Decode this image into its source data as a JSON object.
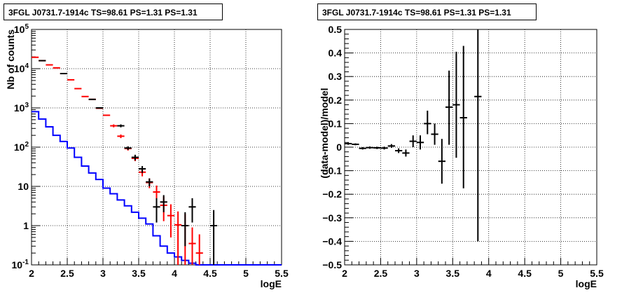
{
  "chart_data": [
    {
      "type": "line",
      "title": "3FGL J0731.7-1914c TS=98.61 PS=1.31 PS=1.31",
      "xlabel": "logE",
      "ylabel": "Nb of counts",
      "xlim": [
        2,
        5.5
      ],
      "ylim": [
        0.1,
        100000
      ],
      "yscale": "log",
      "grid": true,
      "x_ticks": [
        "2",
        "2.5",
        "3",
        "3.5",
        "4",
        "4.5",
        "5",
        "5.5"
      ],
      "y_ticks": [
        "10^-1",
        "1",
        "10",
        "10^2",
        "10^3",
        "10^4",
        "10^5"
      ],
      "series": [
        {
          "color": "#0000ff",
          "style": "step",
          "x": [
            2.05,
            2.15,
            2.25,
            2.35,
            2.45,
            2.55,
            2.65,
            2.75,
            2.85,
            2.95,
            3.05,
            3.15,
            3.25,
            3.35,
            3.45,
            3.55,
            3.65,
            3.75,
            3.85,
            3.95,
            4.05,
            4.15,
            4.25,
            4.35,
            4.45,
            4.55,
            4.65,
            4.75,
            4.85,
            4.95,
            5.05,
            5.15,
            5.25,
            5.35,
            5.45
          ],
          "y": [
            800,
            520,
            330,
            200,
            140,
            95,
            55,
            33,
            22,
            15,
            9,
            6.5,
            4.5,
            3.2,
            2.2,
            1.55,
            1.1,
            0.55,
            0.3,
            0.2,
            0.16,
            0.13,
            0.11,
            0.1,
            0.1,
            0.1,
            0.1,
            0.1,
            0.1,
            0.1,
            0.1,
            0.1,
            0.1,
            0.1,
            0.1
          ]
        },
        {
          "color": "#ff0000",
          "style": "errorbar",
          "x": [
            2.05,
            2.15,
            2.25,
            2.35,
            2.45,
            2.55,
            2.65,
            2.75,
            2.85,
            2.95,
            3.05,
            3.15,
            3.25,
            3.35,
            3.45,
            3.55,
            3.65,
            3.75,
            3.85,
            3.95,
            4.05,
            4.15,
            4.25,
            4.35
          ],
          "y": [
            19500,
            16000,
            12500,
            10500,
            7500,
            5200,
            3100,
            1950,
            1650,
            980,
            650,
            350,
            190,
            92,
            52,
            23,
            12.5,
            7.2,
            3.3,
            1.8,
            1.05,
            1.0,
            0.35,
            0.2
          ],
          "y_low": [
            19500,
            16000,
            12500,
            10500,
            7500,
            5200,
            3100,
            1950,
            1650,
            980,
            650,
            320,
            170,
            82,
            44,
            18,
            9,
            3.5,
            1.3,
            0.5,
            0.1,
            0.1,
            0.1,
            0.1
          ],
          "y_high": [
            19500,
            16000,
            12500,
            10500,
            7500,
            5200,
            3100,
            1950,
            1650,
            980,
            650,
            380,
            210,
            102,
            60,
            28,
            16,
            10.5,
            5.5,
            3.5,
            2.3,
            2.0,
            0.9,
            0.6
          ]
        },
        {
          "color": "#000000",
          "style": "errorbar",
          "x": [
            2.15,
            2.45,
            2.85,
            2.95,
            3.25,
            3.35,
            3.45,
            3.55,
            3.65,
            3.75,
            3.85,
            4.15,
            4.25,
            4.55
          ],
          "y": [
            16000,
            7500,
            1650,
            1000,
            350,
            95,
            55,
            28,
            13,
            3.0,
            4.0,
            1.0,
            3.0,
            1.0
          ],
          "y_low": [
            16000,
            7500,
            1650,
            1000,
            320,
            85,
            46,
            22,
            10,
            1.2,
            2.2,
            0.3,
            1.2,
            0.1
          ],
          "y_high": [
            16000,
            7500,
            1650,
            1000,
            380,
            105,
            64,
            33,
            16,
            5.0,
            6.0,
            2.2,
            5.0,
            2.5
          ]
        }
      ]
    },
    {
      "type": "scatter",
      "title": "3FGL J0731.7-1914c TS=98.61 PS=1.31 PS=1.31",
      "xlabel": "logE",
      "ylabel": "(data-model)/model",
      "xlim": [
        2,
        5.5
      ],
      "ylim": [
        -0.5,
        0.5
      ],
      "grid": true,
      "x_ticks": [
        "2",
        "2.5",
        "3",
        "3.5",
        "4",
        "4.5",
        "5",
        "5.5"
      ],
      "y_ticks": [
        "−0.5",
        "−0.4",
        "−0.3",
        "−0.2",
        "−0.1",
        "0",
        "0.1",
        "0.2",
        "0.3",
        "0.4",
        "0.5"
      ],
      "series": [
        {
          "color": "#000000",
          "style": "errorbar",
          "x": [
            2.05,
            2.15,
            2.25,
            2.35,
            2.45,
            2.55,
            2.65,
            2.75,
            2.85,
            2.95,
            3.05,
            3.15,
            3.25,
            3.35,
            3.45,
            3.55,
            3.65,
            3.85
          ],
          "y": [
            0.015,
            0.012,
            -0.005,
            -0.002,
            -0.003,
            -0.004,
            0.005,
            -0.015,
            -0.025,
            0.025,
            0.02,
            0.1,
            0.055,
            -0.06,
            0.17,
            0.18,
            0.125,
            0.215
          ],
          "y_low": [
            0.01,
            0.008,
            -0.01,
            -0.007,
            -0.008,
            -0.01,
            -0.003,
            -0.025,
            -0.04,
            0.0,
            -0.01,
            0.055,
            0.01,
            -0.155,
            0.01,
            -0.045,
            -0.175,
            -0.4
          ],
          "y_high": [
            0.02,
            0.016,
            0.0,
            0.003,
            0.002,
            0.002,
            0.013,
            -0.005,
            -0.01,
            0.05,
            0.05,
            0.155,
            0.1,
            0.035,
            0.325,
            0.405,
            0.43,
            0.5
          ]
        }
      ]
    }
  ]
}
